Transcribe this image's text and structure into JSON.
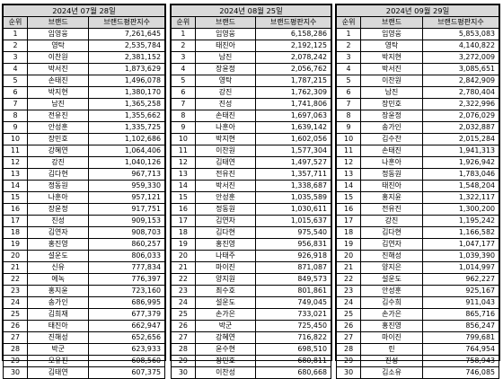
{
  "headers": {
    "rank": "순위",
    "brand": "브랜드",
    "index": "브랜드평판지수"
  },
  "panels": [
    {
      "date": "2024년 07월 28일",
      "rows": [
        {
          "rank": "1",
          "name": "임영웅",
          "score": "7,261,645"
        },
        {
          "rank": "2",
          "name": "영탁",
          "score": "2,535,784"
        },
        {
          "rank": "3",
          "name": "이찬원",
          "score": "2,381,152"
        },
        {
          "rank": "4",
          "name": "박서진",
          "score": "1,873,629"
        },
        {
          "rank": "5",
          "name": "손태진",
          "score": "1,496,078"
        },
        {
          "rank": "6",
          "name": "박지현",
          "score": "1,380,170"
        },
        {
          "rank": "7",
          "name": "남진",
          "score": "1,365,258"
        },
        {
          "rank": "8",
          "name": "전유진",
          "score": "1,355,662"
        },
        {
          "rank": "9",
          "name": "안성훈",
          "score": "1,335,725"
        },
        {
          "rank": "10",
          "name": "장민호",
          "score": "1,102,686"
        },
        {
          "rank": "11",
          "name": "강혜연",
          "score": "1,064,406"
        },
        {
          "rank": "12",
          "name": "강진",
          "score": "1,040,126"
        },
        {
          "rank": "13",
          "name": "김다현",
          "score": "967,713"
        },
        {
          "rank": "14",
          "name": "정동원",
          "score": "959,330"
        },
        {
          "rank": "15",
          "name": "나훈아",
          "score": "957,121"
        },
        {
          "rank": "16",
          "name": "장윤정",
          "score": "917,751"
        },
        {
          "rank": "17",
          "name": "진성",
          "score": "909,153"
        },
        {
          "rank": "18",
          "name": "김연자",
          "score": "908,703"
        },
        {
          "rank": "19",
          "name": "홍진영",
          "score": "860,257"
        },
        {
          "rank": "20",
          "name": "설운도",
          "score": "806,033"
        },
        {
          "rank": "21",
          "name": "신유",
          "score": "777,834"
        },
        {
          "rank": "22",
          "name": "에녹",
          "score": "776,397"
        },
        {
          "rank": "23",
          "name": "홍지윤",
          "score": "723,160"
        },
        {
          "rank": "24",
          "name": "송가인",
          "score": "686,995"
        },
        {
          "rank": "25",
          "name": "김희재",
          "score": "677,379"
        },
        {
          "rank": "26",
          "name": "태진아",
          "score": "662,947"
        },
        {
          "rank": "27",
          "name": "진해성",
          "score": "652,656"
        },
        {
          "rank": "28",
          "name": "박군",
          "score": "623,933"
        },
        {
          "rank": "29",
          "name": "오유진",
          "score": "608,560"
        },
        {
          "rank": "30",
          "name": "김태연",
          "score": "607,375"
        }
      ]
    },
    {
      "date": "2024년 08월 25일",
      "rows": [
        {
          "rank": "1",
          "name": "임영웅",
          "score": "6,158,286"
        },
        {
          "rank": "2",
          "name": "태진아",
          "score": "2,192,125"
        },
        {
          "rank": "3",
          "name": "남진",
          "score": "2,078,242"
        },
        {
          "rank": "4",
          "name": "장윤정",
          "score": "2,056,762"
        },
        {
          "rank": "5",
          "name": "영탁",
          "score": "1,787,215"
        },
        {
          "rank": "6",
          "name": "강진",
          "score": "1,762,309"
        },
        {
          "rank": "7",
          "name": "진성",
          "score": "1,741,806"
        },
        {
          "rank": "8",
          "name": "손태진",
          "score": "1,697,063"
        },
        {
          "rank": "9",
          "name": "나훈아",
          "score": "1,639,142"
        },
        {
          "rank": "10",
          "name": "박지현",
          "score": "1,602,056"
        },
        {
          "rank": "11",
          "name": "이찬원",
          "score": "1,577,304"
        },
        {
          "rank": "12",
          "name": "김태연",
          "score": "1,497,527"
        },
        {
          "rank": "13",
          "name": "전유진",
          "score": "1,357,711"
        },
        {
          "rank": "14",
          "name": "박서진",
          "score": "1,338,687"
        },
        {
          "rank": "15",
          "name": "안성훈",
          "score": "1,035,589"
        },
        {
          "rank": "16",
          "name": "정동원",
          "score": "1,030,611"
        },
        {
          "rank": "17",
          "name": "김연자",
          "score": "1,015,637"
        },
        {
          "rank": "18",
          "name": "김다현",
          "score": "975,540"
        },
        {
          "rank": "19",
          "name": "홍진영",
          "score": "956,831"
        },
        {
          "rank": "20",
          "name": "나태주",
          "score": "926,918"
        },
        {
          "rank": "21",
          "name": "마이진",
          "score": "871,087"
        },
        {
          "rank": "22",
          "name": "양지원",
          "score": "849,573"
        },
        {
          "rank": "23",
          "name": "최수호",
          "score": "801,861"
        },
        {
          "rank": "24",
          "name": "설운도",
          "score": "749,045"
        },
        {
          "rank": "25",
          "name": "손가은",
          "score": "733,021"
        },
        {
          "rank": "26",
          "name": "박군",
          "score": "725,450"
        },
        {
          "rank": "27",
          "name": "강혜연",
          "score": "716,822"
        },
        {
          "rank": "28",
          "name": "윤수현",
          "score": "698,510"
        },
        {
          "rank": "29",
          "name": "장민호",
          "score": "680,811"
        },
        {
          "rank": "30",
          "name": "이찬성",
          "score": "680,668"
        }
      ]
    },
    {
      "date": "2024년 09월 29일",
      "rows": [
        {
          "rank": "1",
          "name": "임영웅",
          "score": "5,853,083"
        },
        {
          "rank": "2",
          "name": "영탁",
          "score": "4,140,822"
        },
        {
          "rank": "3",
          "name": "박지현",
          "score": "3,272,009"
        },
        {
          "rank": "4",
          "name": "박서진",
          "score": "3,085,651"
        },
        {
          "rank": "5",
          "name": "이찬원",
          "score": "2,842,909"
        },
        {
          "rank": "6",
          "name": "남진",
          "score": "2,780,404"
        },
        {
          "rank": "7",
          "name": "장민호",
          "score": "2,322,996"
        },
        {
          "rank": "8",
          "name": "장윤정",
          "score": "2,076,029"
        },
        {
          "rank": "9",
          "name": "송가인",
          "score": "2,032,887"
        },
        {
          "rank": "10",
          "name": "김수찬",
          "score": "2,015,284"
        },
        {
          "rank": "11",
          "name": "손태진",
          "score": "1,941,313"
        },
        {
          "rank": "12",
          "name": "나훈아",
          "score": "1,926,942"
        },
        {
          "rank": "13",
          "name": "정동원",
          "score": "1,783,046"
        },
        {
          "rank": "14",
          "name": "태진아",
          "score": "1,548,204"
        },
        {
          "rank": "15",
          "name": "홍지윤",
          "score": "1,322,117"
        },
        {
          "rank": "16",
          "name": "전유진",
          "score": "1,300,200"
        },
        {
          "rank": "17",
          "name": "강진",
          "score": "1,195,242"
        },
        {
          "rank": "18",
          "name": "김다현",
          "score": "1,166,582"
        },
        {
          "rank": "19",
          "name": "김연자",
          "score": "1,047,177"
        },
        {
          "rank": "20",
          "name": "진해성",
          "score": "1,039,390"
        },
        {
          "rank": "21",
          "name": "양지은",
          "score": "1,014,997"
        },
        {
          "rank": "22",
          "name": "설운도",
          "score": "962,227"
        },
        {
          "rank": "23",
          "name": "안성훈",
          "score": "925,167"
        },
        {
          "rank": "24",
          "name": "김수희",
          "score": "911,043"
        },
        {
          "rank": "25",
          "name": "손가은",
          "score": "865,716"
        },
        {
          "rank": "26",
          "name": "홍진영",
          "score": "856,247"
        },
        {
          "rank": "27",
          "name": "마이진",
          "score": "799,681"
        },
        {
          "rank": "28",
          "name": "린",
          "score": "764,954"
        },
        {
          "rank": "29",
          "name": "진성",
          "score": "758,943"
        },
        {
          "rank": "30",
          "name": "김소유",
          "score": "746,085"
        }
      ]
    }
  ]
}
